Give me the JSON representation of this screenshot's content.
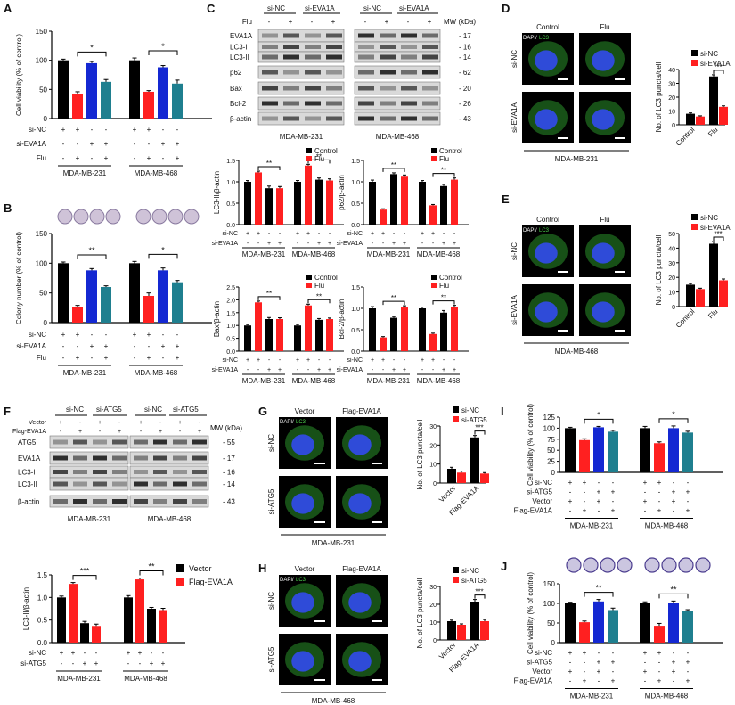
{
  "colors": {
    "black": "#000000",
    "red": "#ff2020",
    "teal": "#1f7f8f",
    "blue": "#1428d2",
    "blotbg": "#d9d9d9"
  },
  "panels": {
    "A": {
      "label": "A",
      "chart_data": {
        "type": "bar",
        "ylabel": "Cell viability (% of control)",
        "ylim": [
          0,
          150
        ],
        "yticks": [
          "0",
          "50",
          "100",
          "150"
        ],
        "groups": [
          "MDA-MB-231",
          "MDA-MB-468"
        ],
        "values": [
          [
            100,
            42,
            95,
            63
          ],
          [
            100,
            46,
            88,
            60
          ]
        ],
        "errors": [
          [
            2,
            4,
            3,
            4
          ],
          [
            4,
            2,
            3,
            6
          ]
        ],
        "sig": [
          "*",
          "*"
        ],
        "conditions": [
          {
            "name": "si-NC",
            "signs": [
              "+",
              "+",
              "-",
              "-"
            ]
          },
          {
            "name": "si-EVA1A",
            "signs": [
              "-",
              "-",
              "+",
              "+"
            ]
          },
          {
            "name": "Flu",
            "signs": [
              "-",
              "+",
              "-",
              "+"
            ]
          }
        ]
      }
    },
    "B": {
      "label": "B",
      "chart_data": {
        "type": "bar",
        "ylabel": "Colony number (% of control)",
        "ylim": [
          0,
          150
        ],
        "yticks": [
          "0",
          "50",
          "100",
          "150"
        ],
        "groups": [
          "MDA-MB-231",
          "MDA-MB-468"
        ],
        "values": [
          [
            100,
            26,
            88,
            60
          ],
          [
            100,
            45,
            88,
            68
          ]
        ],
        "errors": [
          [
            2,
            3,
            3,
            2
          ],
          [
            3,
            5,
            4,
            3
          ]
        ],
        "sig": [
          "**",
          "*"
        ],
        "conditions": [
          {
            "name": "si-NC",
            "signs": [
              "+",
              "+",
              "-",
              "-"
            ]
          },
          {
            "name": "si-EVA1A",
            "signs": [
              "-",
              "-",
              "+",
              "+"
            ]
          },
          {
            "name": "Flu",
            "signs": [
              "-",
              "+",
              "-",
              "+"
            ]
          }
        ]
      }
    },
    "C": {
      "label": "C",
      "lanes_top": {
        "sinc": "si-NC",
        "sieva": "si-EVA1A",
        "flu": "Flu",
        "mw": "MW (kDa)",
        "signs": [
          "-",
          "+",
          "-",
          "+"
        ]
      },
      "bands": [
        {
          "name": "EVA1A",
          "mw": "17"
        },
        {
          "name": "LC3-I",
          "mw": "16"
        },
        {
          "name": "LC3-II",
          "mw": "14"
        },
        {
          "name": "p62",
          "mw": "62"
        },
        {
          "name": "Bax",
          "mw": "20"
        },
        {
          "name": "Bcl-2",
          "mw": "26"
        },
        {
          "name": "β-actin",
          "mw": "43"
        }
      ],
      "cells": [
        "MDA-MB-231",
        "MDA-MB-468"
      ],
      "legend": [
        "Control",
        "Flu"
      ],
      "conditions": [
        {
          "name": "si-NC",
          "signs": [
            "+",
            "+",
            "-",
            "-"
          ]
        },
        {
          "name": "si-EVA1A",
          "signs": [
            "-",
            "-",
            "+",
            "+"
          ]
        }
      ],
      "subcharts": [
        {
          "ylabel": "LC3-II/β-actin",
          "ylim": [
            0,
            1.5
          ],
          "yticks": [
            "0.0",
            "0.5",
            "1.0",
            "1.5"
          ],
          "values": [
            [
              1.0,
              1.22,
              0.85,
              0.85
            ],
            [
              1.0,
              1.38,
              1.05,
              1.03
            ]
          ],
          "errors": [
            [
              0.03,
              0.03,
              0.05,
              0.04
            ],
            [
              0.03,
              0.03,
              0.04,
              0.04
            ]
          ],
          "sig": [
            "**",
            "**"
          ],
          "legend": true
        },
        {
          "ylabel": "p62/β-actin",
          "ylim": [
            0,
            1.5
          ],
          "yticks": [
            "0.0",
            "0.5",
            "1.0",
            "1.5"
          ],
          "values": [
            [
              1.0,
              0.35,
              1.18,
              1.12
            ],
            [
              1.0,
              0.45,
              0.9,
              1.05
            ]
          ],
          "errors": [
            [
              0.04,
              0.02,
              0.03,
              0.04
            ],
            [
              0.03,
              0.02,
              0.04,
              0.04
            ]
          ],
          "sig": [
            "**",
            "**"
          ],
          "legend": true
        },
        {
          "ylabel": "Bax/β-actin",
          "ylim": [
            0,
            2.5
          ],
          "yticks": [
            "0.0",
            "0.5",
            "1.0",
            "1.5",
            "2.0",
            "2.5"
          ],
          "values": [
            [
              1.0,
              1.9,
              1.25,
              1.25
            ],
            [
              1.0,
              1.78,
              1.22,
              1.25
            ]
          ],
          "errors": [
            [
              0.04,
              0.05,
              0.06,
              0.05
            ],
            [
              0.04,
              0.05,
              0.05,
              0.04
            ]
          ],
          "sig": [
            "**",
            "**"
          ],
          "legend": true
        },
        {
          "ylabel": "Bcl-2/β-actin",
          "ylim": [
            0,
            1.5
          ],
          "yticks": [
            "0.0",
            "0.5",
            "1.0",
            "1.5"
          ],
          "values": [
            [
              1.0,
              0.32,
              0.78,
              1.02
            ],
            [
              1.0,
              0.4,
              0.9,
              1.03
            ]
          ],
          "errors": [
            [
              0.04,
              0.02,
              0.03,
              0.04
            ],
            [
              0.03,
              0.02,
              0.05,
              0.04
            ]
          ],
          "sig": [
            "**",
            "**"
          ],
          "legend": true
        }
      ]
    },
    "D": {
      "label": "D",
      "cols": [
        "Control",
        "Flu"
      ],
      "rows": [
        "si-NC",
        "si-EVA1A"
      ],
      "stain": [
        "DAPI/",
        "LC3"
      ],
      "cell": "MDA-MB-231",
      "chart_data": {
        "type": "bar",
        "ylabel": "No. of LC3 puncta/cell",
        "ylim": [
          0,
          40
        ],
        "yticks": [
          "0",
          "10",
          "20",
          "30",
          "40"
        ],
        "categories": [
          "Control",
          "Flu"
        ],
        "series": [
          {
            "name": "si-NC",
            "values": [
              8,
              35
            ],
            "errors": [
              0.6,
              1.2
            ]
          },
          {
            "name": "si-EVA1A",
            "values": [
              6,
              13
            ],
            "errors": [
              0.5,
              0.7
            ]
          }
        ],
        "sig": "***"
      }
    },
    "E": {
      "label": "E",
      "cols": [
        "Control",
        "Flu"
      ],
      "rows": [
        "si-NC",
        "si-EVA1A"
      ],
      "stain": [
        "DAPI/",
        "LC3"
      ],
      "cell": "MDA-MB-468",
      "chart_data": {
        "type": "bar",
        "ylabel": "No. of LC3 puncta/cell",
        "ylim": [
          0,
          50
        ],
        "yticks": [
          "0",
          "10",
          "20",
          "30",
          "40",
          "50"
        ],
        "categories": [
          "Control",
          "Flu"
        ],
        "series": [
          {
            "name": "si-NC",
            "values": [
              15,
              43
            ],
            "errors": [
              0.8,
              1.5
            ]
          },
          {
            "name": "si-EVA1A",
            "values": [
              12,
              18
            ],
            "errors": [
              0.6,
              0.9
            ]
          }
        ],
        "sig": "***"
      }
    },
    "F": {
      "label": "F",
      "lanes_top": {
        "sinc": "si-NC",
        "siatg": "si-ATG5",
        "rows": [
          {
            "name": "Vector",
            "signs": [
              "+",
              "-",
              "+",
              "-"
            ]
          },
          {
            "name": "Flag-EVA1A",
            "signs": [
              "-",
              "+",
              "-",
              "+"
            ]
          }
        ],
        "mw": "MW (kDa)"
      },
      "bands": [
        {
          "name": "ATG5",
          "mw": "55"
        },
        {
          "name": "EVA1A",
          "mw": "17"
        },
        {
          "name": "LC3-I",
          "mw": "16"
        },
        {
          "name": "LC3-II",
          "mw": "14"
        },
        {
          "name": "β-actin",
          "mw": "43"
        }
      ],
      "cells": [
        "MDA-MB-231",
        "MDA-MB-468"
      ],
      "chart_data": {
        "type": "bar",
        "ylabel": "LC3-II/β-actin",
        "ylim": [
          0,
          1.5
        ],
        "yticks": [
          "0.0",
          "0.5",
          "1.0",
          "1.5"
        ],
        "groups": [
          "MDA-MB-231",
          "MDA-MB-468"
        ],
        "legend": [
          "Vector",
          "Flag-EVA1A"
        ],
        "values": [
          [
            1.0,
            1.3,
            0.43,
            0.37
          ],
          [
            1.0,
            1.4,
            0.75,
            0.72
          ]
        ],
        "errors": [
          [
            0.03,
            0.03,
            0.04,
            0.04
          ],
          [
            0.04,
            0.03,
            0.03,
            0.04
          ]
        ],
        "sig": [
          "***",
          "**"
        ],
        "conditions": [
          {
            "name": "si-NC",
            "signs": [
              "+",
              "+",
              "-",
              "-"
            ]
          },
          {
            "name": "si-ATG5",
            "signs": [
              "-",
              "-",
              "+",
              "+"
            ]
          }
        ]
      }
    },
    "G": {
      "label": "G",
      "cols": [
        "Vector",
        "Flag-EVA1A"
      ],
      "rows": [
        "si-NC",
        "si-ATG5"
      ],
      "stain": [
        "DAPI/",
        "LC3"
      ],
      "cell": "MDA-MB-231",
      "chart_data": {
        "type": "bar",
        "ylabel": "No. of LC3 puncta/cell",
        "ylim": [
          0,
          30
        ],
        "yticks": [
          "0",
          "10",
          "20",
          "30"
        ],
        "categories": [
          "Vector",
          "Flag-EVA1A"
        ],
        "series": [
          {
            "name": "si-NC",
            "values": [
              7.5,
              24
            ],
            "errors": [
              0.8,
              1.0
            ]
          },
          {
            "name": "si-ATG5",
            "values": [
              5.5,
              5
            ],
            "errors": [
              0.8,
              0.5
            ]
          }
        ],
        "sig": "***"
      }
    },
    "H": {
      "label": "H",
      "cols": [
        "Vector",
        "Flag-EVA1A"
      ],
      "rows": [
        "si-NC",
        "si-ATG5"
      ],
      "stain": [
        "DAPI/",
        "LC3"
      ],
      "cell": "MDA-MB-468",
      "chart_data": {
        "type": "bar",
        "ylabel": "No. of LC3 puncta/cell",
        "ylim": [
          0,
          30
        ],
        "yticks": [
          "0",
          "10",
          "20",
          "30"
        ],
        "categories": [
          "Vector",
          "Flag-EVA1A"
        ],
        "series": [
          {
            "name": "si-NC",
            "values": [
              10.5,
              21.5
            ],
            "errors": [
              0.6,
              1.2
            ]
          },
          {
            "name": "si-ATG5",
            "values": [
              8.5,
              10.5
            ],
            "errors": [
              0.5,
              1.0
            ]
          }
        ],
        "sig": "***"
      }
    },
    "I": {
      "label": "I",
      "chart_data": {
        "type": "bar",
        "ylabel": "Cell viability (% of control)",
        "ylim": [
          0,
          125
        ],
        "yticks": [
          "0",
          "25",
          "50",
          "75",
          "100",
          "125"
        ],
        "groups": [
          "MDA-MB-231",
          "MDA-MB-468"
        ],
        "values": [
          [
            100,
            73,
            102,
            92
          ],
          [
            100,
            66,
            100,
            90
          ]
        ],
        "errors": [
          [
            2,
            3,
            2,
            3
          ],
          [
            4,
            3,
            5,
            3
          ]
        ],
        "sig": [
          "*",
          "*"
        ],
        "conditions": [
          {
            "name": "si-NC",
            "signs": [
              "+",
              "+",
              "-",
              "-"
            ]
          },
          {
            "name": "si-ATG5",
            "signs": [
              "-",
              "-",
              "+",
              "+"
            ]
          },
          {
            "name": "Vector",
            "signs": [
              "+",
              "-",
              "+",
              "-"
            ]
          },
          {
            "name": "Flag-EVA1A",
            "signs": [
              "-",
              "+",
              "-",
              "+"
            ]
          }
        ]
      }
    },
    "J": {
      "label": "J",
      "chart_data": {
        "type": "bar",
        "ylabel": "Cell viability (% of control)",
        "ylim": [
          0,
          150
        ],
        "yticks": [
          "0",
          "50",
          "100",
          "150"
        ],
        "groups": [
          "MDA-MB-231",
          "MDA-MB-468"
        ],
        "values": [
          [
            100,
            52,
            105,
            83
          ],
          [
            100,
            43,
            102,
            80
          ]
        ],
        "errors": [
          [
            3,
            3,
            5,
            5
          ],
          [
            4,
            6,
            4,
            4
          ]
        ],
        "sig": [
          "**",
          "**"
        ],
        "conditions": [
          {
            "name": "si-NC",
            "signs": [
              "+",
              "+",
              "-",
              "-"
            ]
          },
          {
            "name": "si-ATG5",
            "signs": [
              "-",
              "-",
              "+",
              "+"
            ]
          },
          {
            "name": "Vector",
            "signs": [
              "+",
              "-",
              "+",
              "-"
            ]
          },
          {
            "name": "Flag-EVA1A",
            "signs": [
              "-",
              "+",
              "-",
              "+"
            ]
          }
        ]
      }
    }
  }
}
